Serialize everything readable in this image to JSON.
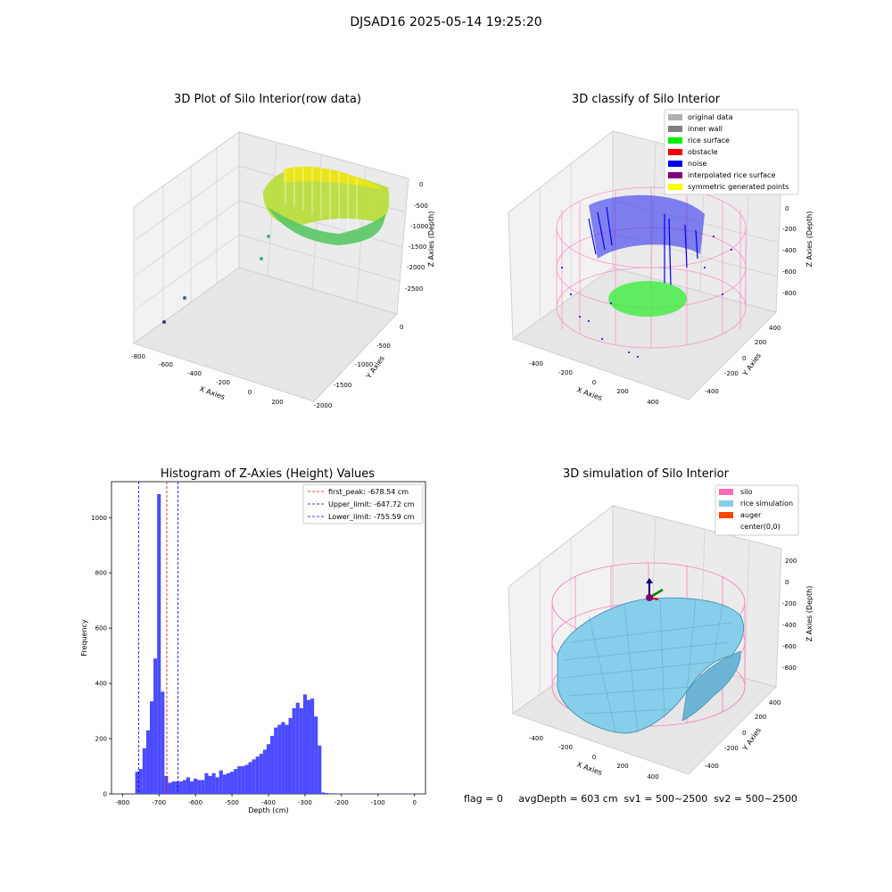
{
  "figure": {
    "suptitle": "DJSAD16 2025-05-14 19:25:20"
  },
  "panels": {
    "raw": {
      "title": "3D Plot of Silo Interior(row data)",
      "xlabel": "X Axies",
      "ylabel": "Y Axies",
      "zlabel": "Z Axies (Depth)",
      "x_ticks": [
        "-800",
        "-600",
        "-400",
        "-200",
        "0",
        "200"
      ],
      "y_ticks": [
        "0",
        "-500",
        "-1000",
        "-1500",
        "-2000"
      ],
      "z_ticks": [
        "0",
        "-500",
        "-1000",
        "-1500",
        "-2000",
        "-2500"
      ]
    },
    "classify": {
      "title": "3D classify of Silo Interior",
      "xlabel": "X Axies",
      "ylabel": "Y Axies",
      "zlabel": "Z Axies (Depth)",
      "x_ticks": [
        "-400",
        "-200",
        "0",
        "200",
        "400"
      ],
      "y_ticks": [
        "400",
        "200",
        "0",
        "-200",
        "-400"
      ],
      "z_ticks": [
        "200",
        "0",
        "-200",
        "-400",
        "-600",
        "-800"
      ],
      "legend": [
        {
          "label": "original data",
          "color": "#b0b0b0"
        },
        {
          "label": "inner wall",
          "color": "#808080"
        },
        {
          "label": "rice surface",
          "color": "#00ee00"
        },
        {
          "label": "obstacle",
          "color": "#ee0000"
        },
        {
          "label": "noise",
          "color": "#0000ee"
        },
        {
          "label": "interpolated rice surface",
          "color": "#800080"
        },
        {
          "label": "symmetric generated points",
          "color": "#ffff00"
        }
      ]
    },
    "simulation": {
      "title": "3D simulation of Silo Interior",
      "xlabel": "X Axies",
      "ylabel": "Y Axies",
      "zlabel": "Z Axies (Depth)",
      "x_ticks": [
        "-400",
        "-200",
        "0",
        "200",
        "400"
      ],
      "y_ticks": [
        "400",
        "200",
        "0",
        "-200",
        "-400"
      ],
      "z_ticks": [
        "200",
        "0",
        "-200",
        "-400",
        "-600",
        "-800"
      ],
      "legend": [
        {
          "label": "silo",
          "color": "#ff69b4"
        },
        {
          "label": "rice simulation",
          "color": "#87ceeb"
        },
        {
          "label": "auger",
          "color": "#ff4500"
        },
        {
          "label": "center(0,0)",
          "color": "#ffffff"
        }
      ],
      "footer": "flag = 0     avgDepth = 603 cm  sv1 = 500~2500  sv2 = 500~2500"
    }
  },
  "chart_data": [
    {
      "type": "bar",
      "title": "Histogram of Z-Axies (Height) Values",
      "xlabel": "Depth (cm)",
      "ylabel": "Frequency",
      "xlim": [
        -830,
        30
      ],
      "ylim": [
        0,
        1130
      ],
      "bar_width": 10,
      "bar_color": "#4b4bff",
      "x_ticks": [
        -800,
        -700,
        -600,
        -500,
        -400,
        -300,
        -200,
        -100,
        0
      ],
      "y_ticks": [
        0,
        200,
        400,
        600,
        800,
        1000
      ],
      "bin_left": [
        -765,
        -755,
        -745,
        -735,
        -725,
        -715,
        -705,
        -695,
        -685,
        -675,
        -665,
        -655,
        -645,
        -635,
        -625,
        -615,
        -605,
        -595,
        -585,
        -575,
        -565,
        -555,
        -545,
        -535,
        -525,
        -515,
        -505,
        -495,
        -485,
        -475,
        -465,
        -455,
        -445,
        -435,
        -425,
        -415,
        -405,
        -395,
        -385,
        -375,
        -365,
        -355,
        -345,
        -335,
        -325,
        -315,
        -305,
        -295,
        -285,
        -275,
        -265,
        -255,
        -245,
        -235,
        -225,
        -215,
        -205,
        -195,
        -185,
        -175,
        -165,
        -155,
        -145,
        -135,
        -125,
        -115,
        -105,
        -95,
        -85,
        -75,
        -65,
        -55,
        -45,
        -35,
        -25,
        -15,
        -5
      ],
      "values": [
        80,
        90,
        165,
        230,
        335,
        490,
        1085,
        370,
        65,
        40,
        45,
        45,
        45,
        50,
        60,
        45,
        55,
        50,
        50,
        75,
        65,
        75,
        60,
        85,
        70,
        75,
        80,
        90,
        100,
        100,
        105,
        115,
        125,
        135,
        145,
        160,
        180,
        210,
        240,
        250,
        260,
        250,
        275,
        310,
        330,
        310,
        360,
        340,
        345,
        280,
        175,
        5,
        3,
        2,
        2,
        1,
        1,
        1,
        1,
        1,
        1,
        1,
        1,
        1,
        1,
        1,
        1,
        1,
        1,
        1,
        1,
        1,
        1,
        1,
        1,
        1,
        1
      ],
      "vlines": [
        {
          "label": "first_peak: -678.54 cm",
          "x": -678.54,
          "color": "#ff0000"
        },
        {
          "label": "Upper_limit: -647.72 cm",
          "x": -647.72,
          "color": "#0000cc"
        },
        {
          "label": "Lower_limit: -755.59 cm",
          "x": -755.59,
          "color": "#0000cc"
        }
      ]
    }
  ]
}
